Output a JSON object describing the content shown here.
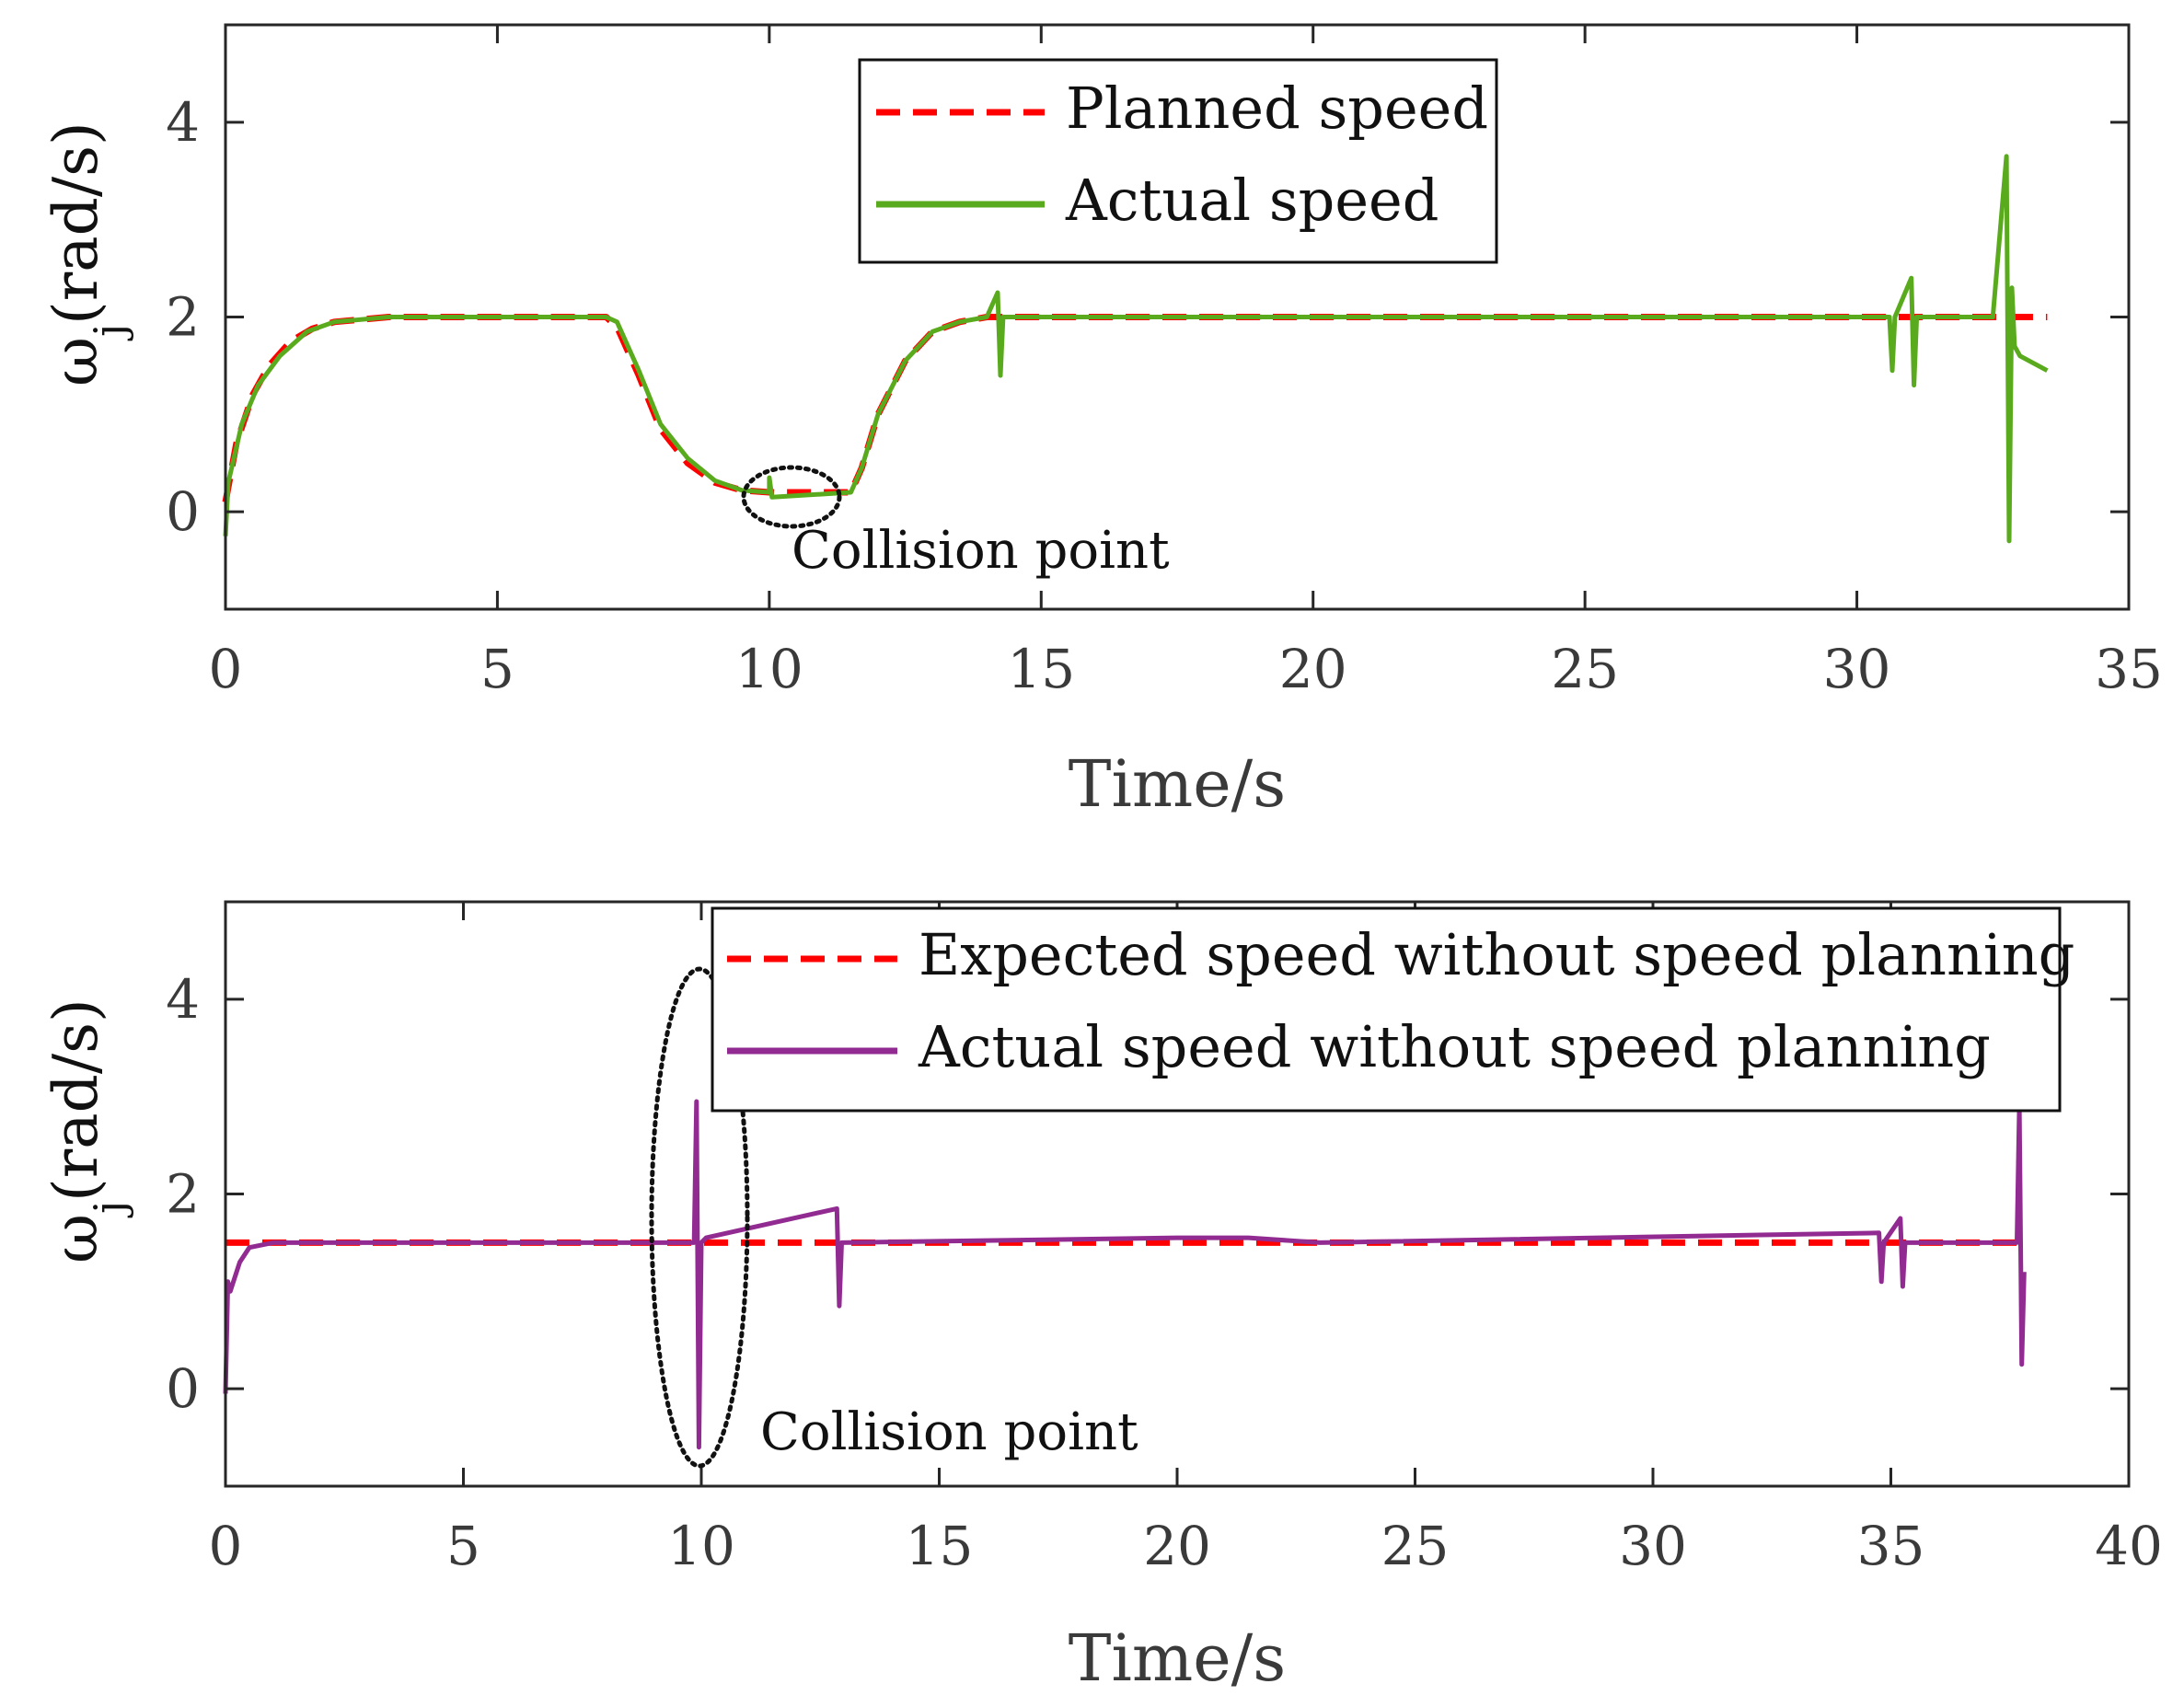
{
  "chart_data": [
    {
      "type": "line",
      "xlabel": "Time/s",
      "ylabel": "ω",
      "ylabel_sub": "j",
      "ylabel_unit": "(rad/s)",
      "xlim": [
        0,
        35
      ],
      "ylim": [
        -1,
        5
      ],
      "xticks": [
        0,
        5,
        10,
        15,
        20,
        25,
        30,
        35
      ],
      "yticks": [
        0,
        2,
        4
      ],
      "grid": false,
      "legend_position": "top-center",
      "series": [
        {
          "name": "Planned speed",
          "style": "dashed",
          "color": "#ff0000",
          "x": [
            0,
            0.2,
            0.5,
            0.8,
            1.2,
            1.6,
            2.0,
            3.0,
            5.0,
            7.0,
            7.2,
            7.6,
            8.0,
            8.5,
            9.0,
            9.5,
            10.0,
            11.5,
            11.7,
            12.0,
            12.5,
            13.0,
            13.5,
            14.0,
            20.0,
            30.0,
            33.0,
            33.5
          ],
          "y": [
            0.1,
            0.7,
            1.2,
            1.5,
            1.75,
            1.88,
            1.95,
            2.0,
            2.0,
            2.0,
            1.9,
            1.4,
            0.85,
            0.5,
            0.3,
            0.22,
            0.2,
            0.2,
            0.45,
            1.0,
            1.55,
            1.85,
            1.95,
            2.0,
            2.0,
            2.0,
            2.0,
            2.0
          ]
        },
        {
          "name": "Actual speed",
          "style": "solid",
          "color": "#5aaa1e",
          "x": [
            0,
            0.05,
            0.3,
            0.6,
            1.0,
            1.5,
            2.0,
            3.0,
            5.0,
            7.0,
            7.2,
            7.6,
            8.0,
            8.5,
            9.0,
            9.5,
            10.0,
            10.0,
            10.05,
            11.5,
            11.7,
            12.0,
            12.5,
            13.0,
            13.5,
            14.0,
            14.2,
            14.25,
            14.3,
            14.35,
            20.0,
            30.0,
            30.6,
            30.65,
            30.7,
            31.0,
            31.05,
            31.1,
            32.5,
            32.75,
            32.8,
            32.85,
            32.9,
            33.0,
            33.5
          ],
          "y": [
            -0.25,
            0.3,
            0.9,
            1.3,
            1.6,
            1.85,
            1.95,
            2.0,
            2.0,
            2.0,
            1.95,
            1.45,
            0.9,
            0.55,
            0.32,
            0.22,
            0.2,
            0.35,
            0.15,
            0.2,
            0.45,
            1.0,
            1.55,
            1.85,
            1.95,
            2.0,
            2.25,
            1.4,
            2.0,
            2.0,
            2.0,
            2.0,
            2.0,
            1.45,
            2.0,
            2.4,
            1.3,
            2.0,
            2.0,
            3.65,
            -0.3,
            2.3,
            1.7,
            1.6,
            1.45
          ]
        }
      ],
      "annotations": [
        "Collision point"
      ]
    },
    {
      "type": "line",
      "xlabel": "Time/s",
      "ylabel": "ω",
      "ylabel_sub": "j",
      "ylabel_unit": "(rad/s)",
      "xlim": [
        0,
        40
      ],
      "ylim": [
        -1,
        5
      ],
      "xticks": [
        0,
        5,
        10,
        15,
        20,
        25,
        30,
        35,
        40
      ],
      "yticks": [
        0,
        2,
        4
      ],
      "grid": false,
      "legend_position": "top-right",
      "series": [
        {
          "name": "Expected speed without speed planning",
          "style": "dashed",
          "color": "#ff0000",
          "x": [
            0,
            37.8
          ],
          "y": [
            1.5,
            1.5
          ]
        },
        {
          "name": "Actual speed without speed planning",
          "style": "solid",
          "color": "#922b91",
          "x": [
            0,
            0.05,
            0.1,
            0.3,
            0.5,
            1.0,
            5.0,
            9.85,
            9.9,
            9.95,
            10.0,
            10.1,
            12.85,
            12.9,
            12.95,
            20.0,
            21.5,
            23.0,
            34.75,
            34.8,
            34.85,
            35.2,
            35.25,
            35.3,
            37.65,
            37.7,
            37.75,
            37.8
          ],
          "y": [
            -0.05,
            1.1,
            1.0,
            1.3,
            1.45,
            1.5,
            1.5,
            1.5,
            2.95,
            -0.6,
            1.5,
            1.55,
            1.85,
            0.85,
            1.5,
            1.55,
            1.55,
            1.5,
            1.6,
            1.1,
            1.5,
            1.75,
            1.05,
            1.5,
            1.5,
            2.9,
            0.25,
            1.2
          ]
        }
      ],
      "annotations": [
        "Collision point"
      ]
    }
  ]
}
